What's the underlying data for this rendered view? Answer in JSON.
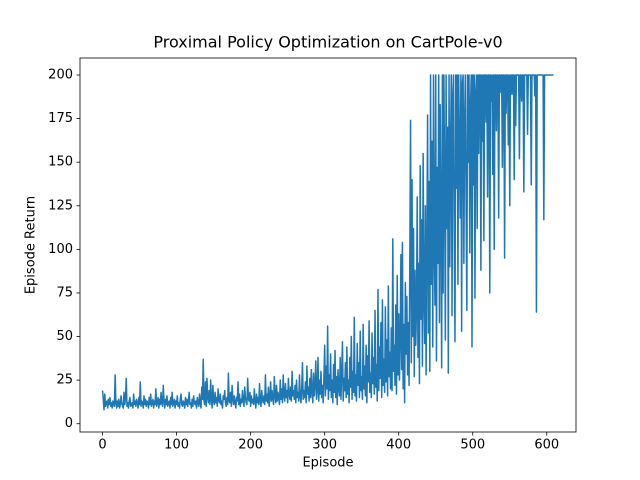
{
  "chart_data": {
    "type": "line",
    "title": "Proximal Policy Optimization on CartPole-v0",
    "x_label": "Episode",
    "y_label": "Episode Return",
    "color": "#1f77b4",
    "grid": false,
    "xlim": [
      -30.45,
      639.45
    ],
    "xticks": [
      0,
      100,
      200,
      300,
      400,
      500,
      600
    ],
    "ylim": [
      -4.75,
      209.75
    ],
    "yticks": [
      0,
      25,
      50,
      75,
      100,
      125,
      150,
      175,
      200
    ],
    "x": [
      0,
      1,
      2,
      3,
      4,
      5,
      6,
      7,
      8,
      9,
      10,
      11,
      12,
      13,
      14,
      15,
      16,
      17,
      18,
      19,
      20,
      21,
      22,
      23,
      24,
      25,
      26,
      27,
      28,
      29,
      30,
      31,
      32,
      33,
      34,
      35,
      36,
      37,
      38,
      39,
      40,
      41,
      42,
      43,
      44,
      45,
      46,
      47,
      48,
      49,
      50,
      51,
      52,
      53,
      54,
      55,
      56,
      57,
      58,
      59,
      60,
      61,
      62,
      63,
      64,
      65,
      66,
      67,
      68,
      69,
      70,
      71,
      72,
      73,
      74,
      75,
      76,
      77,
      78,
      79,
      80,
      81,
      82,
      83,
      84,
      85,
      86,
      87,
      88,
      89,
      90,
      91,
      92,
      93,
      94,
      95,
      96,
      97,
      98,
      99,
      100,
      101,
      102,
      103,
      104,
      105,
      106,
      107,
      108,
      109,
      110,
      111,
      112,
      113,
      114,
      115,
      116,
      117,
      118,
      119,
      120,
      121,
      122,
      123,
      124,
      125,
      126,
      127,
      128,
      129,
      130,
      131,
      132,
      133,
      134,
      135,
      136,
      137,
      138,
      139,
      140,
      141,
      142,
      143,
      144,
      145,
      146,
      147,
      148,
      149,
      150,
      151,
      152,
      153,
      154,
      155,
      156,
      157,
      158,
      159,
      160,
      161,
      162,
      163,
      164,
      165,
      166,
      167,
      168,
      169,
      170,
      171,
      172,
      173,
      174,
      175,
      176,
      177,
      178,
      179,
      180,
      181,
      182,
      183,
      184,
      185,
      186,
      187,
      188,
      189,
      190,
      191,
      192,
      193,
      194,
      195,
      196,
      197,
      198,
      199,
      200,
      201,
      202,
      203,
      204,
      205,
      206,
      207,
      208,
      209,
      210,
      211,
      212,
      213,
      214,
      215,
      216,
      217,
      218,
      219,
      220,
      221,
      222,
      223,
      224,
      225,
      226,
      227,
      228,
      229,
      230,
      231,
      232,
      233,
      234,
      235,
      236,
      237,
      238,
      239,
      240,
      241,
      242,
      243,
      244,
      245,
      246,
      247,
      248,
      249,
      250,
      251,
      252,
      253,
      254,
      255,
      256,
      257,
      258,
      259,
      260,
      261,
      262,
      263,
      264,
      265,
      266,
      267,
      268,
      269,
      270,
      271,
      272,
      273,
      274,
      275,
      276,
      277,
      278,
      279,
      280,
      281,
      282,
      283,
      284,
      285,
      286,
      287,
      288,
      289,
      290,
      291,
      292,
      293,
      294,
      295,
      296,
      297,
      298,
      299,
      300,
      301,
      302,
      303,
      304,
      305,
      306,
      307,
      308,
      309,
      310,
      311,
      312,
      313,
      314,
      315,
      316,
      317,
      318,
      319,
      320,
      321,
      322,
      323,
      324,
      325,
      326,
      327,
      328,
      329,
      330,
      331,
      332,
      333,
      334,
      335,
      336,
      337,
      338,
      339,
      340,
      341,
      342,
      343,
      344,
      345,
      346,
      347,
      348,
      349,
      350,
      351,
      352,
      353,
      354,
      355,
      356,
      357,
      358,
      359,
      360,
      361,
      362,
      363,
      364,
      365,
      366,
      367,
      368,
      369,
      370,
      371,
      372,
      373,
      374,
      375,
      376,
      377,
      378,
      379,
      380,
      381,
      382,
      383,
      384,
      385,
      386,
      387,
      388,
      389,
      390,
      391,
      392,
      393,
      394,
      395,
      396,
      397,
      398,
      399,
      400,
      401,
      402,
      403,
      404,
      405,
      406,
      407,
      408,
      409,
      410,
      411,
      412,
      413,
      414,
      415,
      416,
      417,
      418,
      419,
      420,
      421,
      422,
      423,
      424,
      425,
      426,
      427,
      428,
      429,
      430,
      431,
      432,
      433,
      434,
      435,
      436,
      437,
      438,
      439,
      440,
      441,
      442,
      443,
      444,
      445,
      446,
      447,
      448,
      449,
      450,
      451,
      452,
      453,
      454,
      455,
      456,
      457,
      458,
      459,
      460,
      461,
      462,
      463,
      464,
      465,
      466,
      467,
      468,
      469,
      470,
      471,
      472,
      473,
      474,
      475,
      476,
      477,
      478,
      479,
      480,
      481,
      482,
      483,
      484,
      485,
      486,
      487,
      488,
      489,
      490,
      491,
      492,
      493,
      494,
      495,
      496,
      497,
      498,
      499,
      500,
      501,
      502,
      503,
      504,
      505,
      506,
      507,
      508,
      509,
      510,
      511,
      512,
      513,
      514,
      515,
      516,
      517,
      518,
      519,
      520,
      521,
      522,
      523,
      524,
      525,
      526,
      527,
      528,
      529,
      530,
      531,
      532,
      533,
      534,
      535,
      536,
      537,
      538,
      539,
      540,
      541,
      542,
      543,
      544,
      545,
      546,
      547,
      548,
      549,
      550,
      551,
      552,
      553,
      554,
      555,
      556,
      557,
      558,
      559,
      560,
      561,
      562,
      563,
      564,
      565,
      566,
      567,
      568,
      569,
      570,
      571,
      572,
      573,
      574,
      575,
      576,
      577,
      578,
      579,
      580,
      581,
      582,
      583,
      584,
      585,
      586,
      587,
      588,
      589,
      590,
      591,
      592,
      593,
      594,
      595,
      596,
      597,
      598,
      599,
      600,
      601,
      602,
      603,
      604,
      605,
      606,
      607,
      608,
      609
    ],
    "values": [
      19,
      14,
      8,
      17,
      10,
      12,
      13,
      9,
      14,
      11,
      15,
      10,
      12,
      9,
      13,
      11,
      10,
      28,
      12,
      9,
      13,
      10,
      14,
      9,
      11,
      16,
      12,
      10,
      9,
      18,
      11,
      14,
      26,
      10,
      12,
      9,
      13,
      15,
      10,
      11,
      12,
      9,
      17,
      11,
      13,
      10,
      14,
      12,
      9,
      15,
      11,
      24,
      10,
      13,
      12,
      9,
      16,
      11,
      14,
      10,
      13,
      12,
      9,
      15,
      11,
      17,
      10,
      12,
      14,
      9,
      13,
      11,
      20,
      10,
      12,
      15,
      9,
      14,
      11,
      18,
      12,
      10,
      22,
      13,
      9,
      14,
      11,
      16,
      10,
      12,
      13,
      9,
      15,
      11,
      18,
      10,
      12,
      14,
      9,
      13,
      11,
      16,
      10,
      12,
      9,
      14,
      17,
      11,
      10,
      13,
      12,
      9,
      15,
      11,
      14,
      10,
      13,
      18,
      11,
      12,
      9,
      14,
      10,
      16,
      12,
      11,
      13,
      9,
      15,
      12,
      10,
      17,
      12,
      9,
      21,
      14,
      37,
      13,
      11,
      24,
      10,
      26,
      15,
      12,
      19,
      11,
      25,
      14,
      9,
      22,
      13,
      11,
      18,
      12,
      15,
      10,
      20,
      14,
      12,
      17,
      11,
      13,
      9,
      16,
      14,
      19,
      12,
      10,
      15,
      11,
      29,
      13,
      12,
      18,
      10,
      22,
      14,
      11,
      16,
      12,
      9,
      15,
      13,
      24,
      11,
      17,
      10,
      14,
      12,
      19,
      13,
      10,
      21,
      15,
      12,
      11,
      26,
      14,
      13,
      18,
      10,
      16,
      12,
      14,
      11,
      20,
      13,
      9,
      17,
      12,
      15,
      11,
      23,
      13,
      10,
      19,
      14,
      12,
      16,
      11,
      28,
      13,
      17,
      12,
      21,
      10,
      15,
      24,
      13,
      19,
      14,
      11,
      27,
      16,
      12,
      22,
      13,
      18,
      15,
      11,
      25,
      14,
      20,
      12,
      28,
      16,
      13,
      23,
      15,
      19,
      12,
      26,
      17,
      14,
      21,
      13,
      30,
      16,
      19,
      14,
      22,
      12,
      25,
      15,
      18,
      13,
      28,
      16,
      12,
      20,
      35,
      14,
      19,
      15,
      24,
      12,
      33,
      17,
      21,
      13,
      26,
      15,
      31,
      18,
      12,
      29,
      16,
      22,
      36,
      14,
      19,
      38,
      13,
      25,
      17,
      30,
      15,
      22,
      12,
      27,
      45,
      16,
      33,
      20,
      56,
      14,
      28,
      19,
      40,
      15,
      25,
      12,
      34,
      18,
      42,
      15,
      27,
      11,
      31,
      21,
      16,
      38,
      14,
      29,
      47,
      13,
      26,
      19,
      35,
      15,
      44,
      17,
      25,
      12,
      38,
      21,
      50,
      14,
      30,
      18,
      61,
      16,
      28,
      13,
      46,
      22,
      35,
      15,
      53,
      19,
      27,
      14,
      57,
      20,
      33,
      16,
      45,
      12,
      39,
      24,
      59,
      18,
      29,
      15,
      52,
      23,
      38,
      17,
      65,
      21,
      34,
      13,
      77,
      19,
      44,
      26,
      58,
      15,
      71,
      22,
      37,
      18,
      67,
      24,
      48,
      16,
      79,
      27,
      41,
      20,
      55,
      19,
      106,
      30,
      45,
      22,
      68,
      17,
      85,
      28,
      63,
      25,
      48,
      97,
      31,
      104,
      20,
      57,
      12,
      81,
      40,
      73,
      28,
      58,
      22,
      95,
      174,
      35,
      140,
      50,
      112,
      27,
      88,
      45,
      66,
      130,
      38,
      92,
      23,
      148,
      60,
      117,
      33,
      155,
      74,
      46,
      125,
      28,
      98,
      177,
      52,
      139,
      30,
      200,
      80,
      162,
      44,
      200,
      103,
      68,
      200,
      36,
      147,
      92,
      200,
      58,
      183,
      120,
      32,
      200,
      75,
      200,
      140,
      48,
      200,
      112,
      170,
      29,
      200,
      90,
      155,
      200,
      62,
      188,
      200,
      105,
      47,
      200,
      135,
      200,
      80,
      200,
      160,
      118,
      200,
      53,
      195,
      200,
      92,
      174,
      200,
      126,
      65,
      200,
      150,
      200,
      98,
      183,
      200,
      44,
      200,
      137,
      200,
      72,
      190,
      200,
      112,
      200,
      155,
      200,
      200,
      88,
      200,
      162,
      200,
      105,
      200,
      200,
      173,
      200,
      130,
      200,
      200,
      75,
      200,
      185,
      200,
      143,
      200,
      100,
      200,
      200,
      168,
      200,
      200,
      118,
      200,
      190,
      200,
      200,
      147,
      200,
      200,
      95,
      200,
      178,
      200,
      200,
      160,
      200,
      125,
      200,
      200,
      189,
      200,
      200,
      140,
      200,
      171,
      200,
      200,
      200,
      200,
      152,
      200,
      200,
      185,
      200,
      200,
      133,
      200,
      200,
      200,
      200,
      166,
      200,
      200,
      200,
      200,
      137,
      200,
      200,
      200,
      200,
      188,
      200,
      64,
      200,
      200,
      200,
      200,
      200,
      200,
      200,
      200,
      200,
      117,
      200,
      200,
      200,
      200,
      200,
      200,
      200,
      200,
      200,
      200,
      200,
      200,
      200
    ]
  }
}
